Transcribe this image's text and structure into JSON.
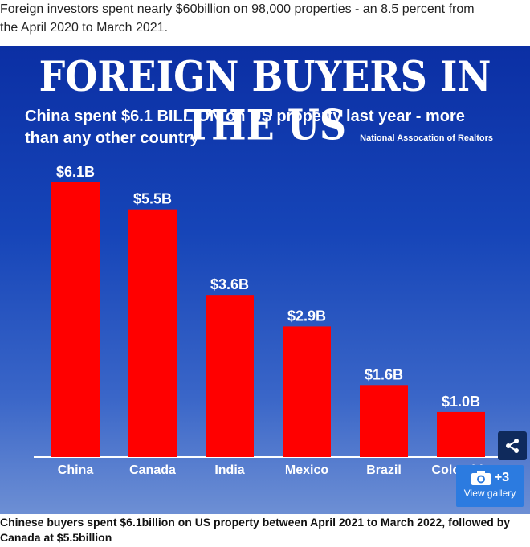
{
  "article": {
    "line1": "Foreign investors spent nearly $60billion on 98,000 properties - an 8.5 percent from",
    "line2": "the April 2020 to March 2021."
  },
  "figure": {
    "headline": "FOREIGN BUYERS IN THE US",
    "subtitle": "China spent $6.1 BILLION on US property last year - more than any other country",
    "source": "National Assocation of Realtors",
    "share_icon": "share-icon",
    "gallery": {
      "icon": "camera-icon",
      "count": "+3",
      "label": "View gallery"
    }
  },
  "chart_data": {
    "type": "bar",
    "categories": [
      "China",
      "Canada",
      "India",
      "Mexico",
      "Brazil",
      "Colombia"
    ],
    "values": [
      6.1,
      5.5,
      3.6,
      2.9,
      1.6,
      1.0
    ],
    "data_labels": [
      "$6.1B",
      "$5.5B",
      "$3.6B",
      "$2.9B",
      "$1.6B",
      "$1.0B"
    ],
    "title": "FOREIGN BUYERS IN THE US",
    "ylim": [
      0,
      6.1
    ],
    "grid": false,
    "bar_color": "#ff0000"
  },
  "caption": "Chinese buyers spent $6.1billion on US property between April 2021 to March 2022, followed by Canada at $5.5billion"
}
